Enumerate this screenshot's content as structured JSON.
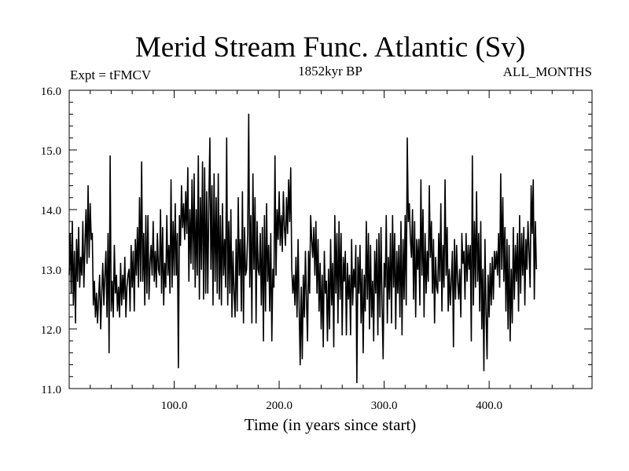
{
  "chart_data": {
    "type": "line",
    "title": "Merid Stream Func. Atlantic (Sv)",
    "subtitle_left": "Expt = tFMCV",
    "subtitle_center": "1852kyr BP",
    "subtitle_right": "ALL_MONTHS",
    "xlabel": "Time (in years since start)",
    "ylabel": "",
    "xlim": [
      0,
      498
    ],
    "ylim": [
      11.0,
      16.0
    ],
    "x_ticks": [
      100,
      200,
      300,
      400
    ],
    "x_tick_labels": [
      "100.0",
      "200.0",
      "300.0",
      "400.0"
    ],
    "y_ticks": [
      11,
      12,
      13,
      14,
      15,
      16
    ],
    "y_tick_labels": [
      "11.0",
      "12.0",
      "13.0",
      "14.0",
      "15.0",
      "16.0"
    ],
    "x_start": 0,
    "x_step": 1,
    "values": [
      12.9,
      13.6,
      12.6,
      13.8,
      12.4,
      13.3,
      12.1,
      13.5,
      12.8,
      13.7,
      12.7,
      13.2,
      12.9,
      13.8,
      12.7,
      13.4,
      14.0,
      13.1,
      14.4,
      13.2,
      14.1,
      13.5,
      13.6,
      12.4,
      12.8,
      12.2,
      12.6,
      12.1,
      12.5,
      12.9,
      12.0,
      12.6,
      13.1,
      12.4,
      12.9,
      13.3,
      12.2,
      13.6,
      11.6,
      14.9,
      12.3,
      12.8,
      12.2,
      13.4,
      12.6,
      12.9,
      12.3,
      12.7,
      12.2,
      13.1,
      12.4,
      12.9,
      12.5,
      13.2,
      12.2,
      12.7,
      12.9,
      13.0,
      12.3,
      13.4,
      12.7,
      13.3,
      12.3,
      13.5,
      12.9,
      13.7,
      12.7,
      14.2,
      12.8,
      14.8,
      12.8,
      13.6,
      12.4,
      13.9,
      12.6,
      13.9,
      12.5,
      13.1,
      13.4,
      12.9,
      13.8,
      12.8,
      13.3,
      12.7,
      13.6,
      13.0,
      12.9,
      14.0,
      12.6,
      13.7,
      12.4,
      13.1,
      12.7,
      13.9,
      12.9,
      13.4,
      12.6,
      14.5,
      12.7,
      13.8,
      12.9,
      14.1,
      12.9,
      13.6,
      11.35,
      13.9,
      13.4,
      14.4,
      13.7,
      14.1,
      13.5,
      14.3,
      13.6,
      14.7,
      12.8,
      14.0,
      13.1,
      14.5,
      13.0,
      14.6,
      12.7,
      14.0,
      12.9,
      14.9,
      12.5,
      14.2,
      13.0,
      14.8,
      12.5,
      14.7,
      12.6,
      14.3,
      12.6,
      14.1,
      15.2,
      13.0,
      14.4,
      12.4,
      14.6,
      12.8,
      14.2,
      12.6,
      14.6,
      12.5,
      13.9,
      12.4,
      14.1,
      12.9,
      13.5,
      12.7,
      15.2,
      12.4,
      13.8,
      12.6,
      14.0,
      12.2,
      13.3,
      12.6,
      12.2,
      13.5,
      12.3,
      14.2,
      12.9,
      13.5,
      12.3,
      14.3,
      12.1,
      13.7,
      12.9,
      13.0,
      13.6,
      15.6,
      12.7,
      13.9,
      12.1,
      14.6,
      13.0,
      14.2,
      12.1,
      13.8,
      13.0,
      12.9,
      13.6,
      12.4,
      13.7,
      11.8,
      13.9,
      12.3,
      14.1,
      12.8,
      13.4,
      12.3,
      13.6,
      11.8,
      13.0,
      12.7,
      14.9,
      12.9,
      14.0,
      13.5,
      14.3,
      13.4,
      13.9,
      13.3,
      14.3,
      13.7,
      13.4,
      14.2,
      13.6,
      14.5,
      13.8,
      14.7,
      13.0,
      12.6,
      12.9,
      12.4,
      13.2,
      12.2,
      13.5,
      12.4,
      11.4,
      12.7,
      11.5,
      12.9,
      12.2,
      13.3,
      12.5,
      11.8,
      13.3,
      12.6,
      13.9,
      13.5,
      13.2,
      13.7,
      12.9,
      13.8,
      12.6,
      13.5,
      12.3,
      13.1,
      12.0,
      12.9,
      11.7,
      13.3,
      12.6,
      12.8,
      11.8,
      13.0,
      12.0,
      13.5,
      12.4,
      13.1,
      11.7,
      13.9,
      12.6,
      13.6,
      12.1,
      13.8,
      12.5,
      13.6,
      11.9,
      13.2,
      12.8,
      13.3,
      11.9,
      13.1,
      12.5,
      12.9,
      11.9,
      13.5,
      12.4,
      13.0,
      12.7,
      13.4,
      11.1,
      13.2,
      12.6,
      13.4,
      12.1,
      13.0,
      11.6,
      12.9,
      12.3,
      13.8,
      12.5,
      13.6,
      12.0,
      13.4,
      12.2,
      12.8,
      11.8,
      13.3,
      12.6,
      13.5,
      11.9,
      13.6,
      12.2,
      13.7,
      12.4,
      11.5,
      13.1,
      12.7,
      13.9,
      12.1,
      13.2,
      12.5,
      13.6,
      12.1,
      13.9,
      12.7,
      13.6,
      12.0,
      13.3,
      12.6,
      13.4,
      12.2,
      13.8,
      11.9,
      13.5,
      12.5,
      13.9,
      12.4,
      15.2,
      13.8,
      14.1,
      13.5,
      13.2,
      14.0,
      12.5,
      13.8,
      12.2,
      13.5,
      13.0,
      13.5,
      12.4,
      14.5,
      12.9,
      14.0,
      12.2,
      13.6,
      12.6,
      13.3,
      12.8,
      14.4,
      13.2,
      13.8,
      12.6,
      13.5,
      12.1,
      13.2,
      12.7,
      12.6,
      13.6,
      12.8,
      14.1,
      12.3,
      13.4,
      12.7,
      14.5,
      12.9,
      13.7,
      12.3,
      13.0,
      12.4,
      12.8,
      13.3,
      11.7,
      13.5,
      12.5,
      13.4,
      12.8,
      12.5,
      13.0,
      12.2,
      13.6,
      13.1,
      13.3,
      12.5,
      13.6,
      12.8,
      13.4,
      13.0,
      13.4,
      11.8,
      14.9,
      12.4,
      13.8,
      12.7,
      14.3,
      12.8,
      13.6,
      12.3,
      13.8,
      12.0,
      13.0,
      11.3,
      13.5,
      12.3,
      11.5,
      12.9,
      12.2,
      13.1,
      12.4,
      13.2,
      12.5,
      13.3,
      13.0,
      13.3,
      12.9,
      13.6,
      12.7,
      14.6,
      13.0,
      14.2,
      12.8,
      13.7,
      12.3,
      13.5,
      12.0,
      13.4,
      11.8,
      13.0,
      12.1,
      13.7,
      12.5,
      13.4,
      12.8,
      13.6,
      12.3,
      13.9,
      12.6,
      13.6,
      12.9,
      13.7,
      12.4,
      13.5,
      13.0,
      13.8,
      13.3,
      12.7,
      14.4,
      13.6,
      14.5,
      12.5,
      13.8,
      13.0
    ]
  }
}
